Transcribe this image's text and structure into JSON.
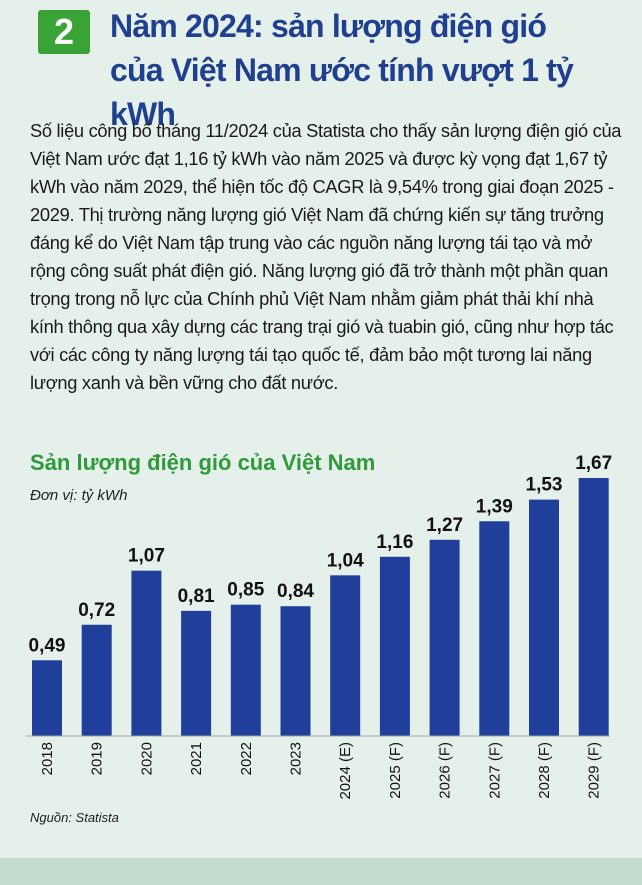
{
  "header": {
    "number": "2",
    "title_line1": "Năm 2024: sản lượng điện gió",
    "title_line2": "của Việt Nam ước tính vượt 1 tỷ kWh"
  },
  "intro": "Số liệu công bố tháng 11/2024 của Statista cho thấy sản lượng điện gió của Việt Nam ước đạt 1,16 tỷ kWh vào năm 2025 và được kỳ vọng đạt 1,67 tỷ kWh vào năm 2029, thể hiện tốc độ CAGR là 9,54% trong giai đoạn 2025 - 2029. Thị trường năng lượng gió Việt Nam đã chứng kiến sự tăng trưởng đáng kể do Việt Nam tập trung vào các nguồn năng lượng tái tạo và mở rộng công suất phát điện gió. Năng lượng gió đã trở thành một phần quan trọng trong nỗ lực của Chính phủ Việt Nam nhằm giảm phát thải khí nhà kính thông qua xây dựng các trang trại gió và tuabin gió, cũng như hợp tác với các công ty năng lượng tái tạo quốc tế, đảm bảo một tương lai năng lượng xanh và bền vững cho đất nước.",
  "source": "Nguồn: Statista",
  "colors": {
    "bar": "#1f3f9a",
    "badge": "#3aa335",
    "headline": "#1f3f8f",
    "chart_title": "#2e9a3a",
    "background": "#e6f0ea"
  },
  "chart_data": {
    "type": "bar",
    "title": "Sản lượng điện gió của Việt Nam",
    "unit": "Đơn vị: tỷ kWh",
    "categories": [
      "2018",
      "2019",
      "2020",
      "2021",
      "2022",
      "2023",
      "2024 (E)",
      "2025 (F)",
      "2026 (F)",
      "2027 (F)",
      "2028 (F)",
      "2029 (F)"
    ],
    "values": [
      0.49,
      0.72,
      1.07,
      0.81,
      0.85,
      0.84,
      1.04,
      1.16,
      1.27,
      1.39,
      1.53,
      1.67
    ],
    "value_labels": [
      "0,49",
      "0,72",
      "1,07",
      "0,81",
      "0,85",
      "0,84",
      "1,04",
      "1,16",
      "1,27",
      "1,39",
      "1,53",
      "1,67"
    ],
    "ylim": [
      0,
      1.67
    ],
    "grid": false,
    "legend": false
  }
}
